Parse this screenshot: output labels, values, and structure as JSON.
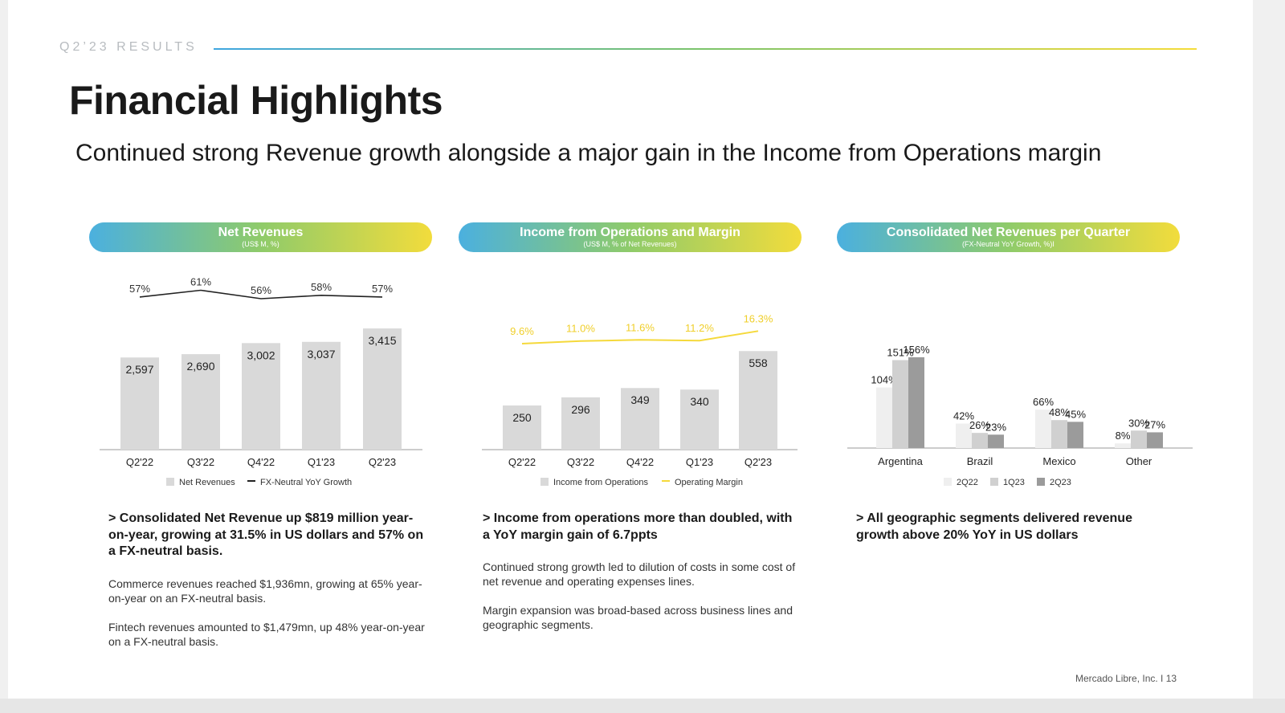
{
  "header": {
    "kicker": "Q2’23 RESULTS",
    "title": "Financial Highlights",
    "subtitle": "Continued strong Revenue growth alongside a major gain in the Income from Operations margin"
  },
  "colors": {
    "bar": "#d9d9d9",
    "line_dark": "#222222",
    "line_yellow": "#f5d93b",
    "geo_2q22": "#efefef",
    "geo_1q23": "#d0d0d0",
    "geo_2q23": "#9b9b9b"
  },
  "panels": [
    {
      "title": "Net Revenues",
      "subtitle": "(US$ M, %)",
      "headline": "> Consolidated Net Revenue up $819 million year-on-year, growing at 31.5% in US dollars and 57% on a FX-neutral basis.",
      "paragraphs": [
        "Commerce revenues reached $1,936mn, growing at 65% year-on-year on an FX-neutral basis.",
        "Fintech revenues amounted to $1,479mn, up 48% year-on-year on a FX-neutral basis."
      ]
    },
    {
      "title": "Income from Operations and Margin",
      "subtitle": "(US$ M, % of Net Revenues)",
      "headline": "> Income from operations more than doubled, with a YoY margin gain of 6.7ppts",
      "paragraphs": [
        "Continued strong growth led to dilution of costs in some cost of net revenue and operating expenses lines.",
        "Margin expansion was broad-based across business lines and geographic segments."
      ]
    },
    {
      "title": "Consolidated Net Revenues per Quarter",
      "subtitle": "(FX-Neutral YoY Growth, %)I",
      "headline": "> All geographic segments delivered revenue growth above 20% YoY in US dollars",
      "paragraphs": []
    }
  ],
  "chart_data": [
    {
      "type": "bar",
      "categories": [
        "Q2'22",
        "Q3'22",
        "Q4'22",
        "Q1'23",
        "Q2'23"
      ],
      "series": [
        {
          "name": "Net Revenues",
          "values": [
            2597,
            2690,
            3002,
            3037,
            3415
          ],
          "labels": [
            "2,597",
            "2,690",
            "3,002",
            "3,037",
            "3,415"
          ]
        },
        {
          "name": "FX-Neutral YoY Growth",
          "type": "line",
          "values": [
            57,
            61,
            56,
            58,
            57
          ],
          "labels": [
            "57%",
            "61%",
            "56%",
            "58%",
            "57%"
          ]
        }
      ]
    },
    {
      "type": "bar",
      "categories": [
        "Q2'22",
        "Q3'22",
        "Q4'22",
        "Q1'23",
        "Q2'23"
      ],
      "series": [
        {
          "name": "Income from Operations",
          "values": [
            250,
            296,
            349,
            340,
            558
          ],
          "labels": [
            "250",
            "296",
            "349",
            "340",
            "558"
          ]
        },
        {
          "name": "Operating Margin",
          "type": "line",
          "values": [
            9.6,
            11.0,
            11.6,
            11.2,
            16.3
          ],
          "labels": [
            "9.6%",
            "11.0%",
            "11.6%",
            "11.2%",
            "16.3%"
          ]
        }
      ]
    },
    {
      "type": "bar",
      "categories": [
        "Argentina",
        "Brazil",
        "Mexico",
        "Other"
      ],
      "series": [
        {
          "name": "2Q22",
          "values": [
            104,
            42,
            66,
            8
          ],
          "labels": [
            "104%",
            "42%",
            "66%",
            "8%"
          ]
        },
        {
          "name": "1Q23",
          "values": [
            151,
            26,
            48,
            30
          ],
          "labels": [
            "151%",
            "26%",
            "48%",
            "30%"
          ]
        },
        {
          "name": "2Q23",
          "values": [
            156,
            23,
            45,
            27
          ],
          "labels": [
            "156%",
            "23%",
            "45%",
            "27%"
          ]
        }
      ]
    }
  ],
  "footer": {
    "text": "Mercado Libre, Inc.  I  13"
  }
}
